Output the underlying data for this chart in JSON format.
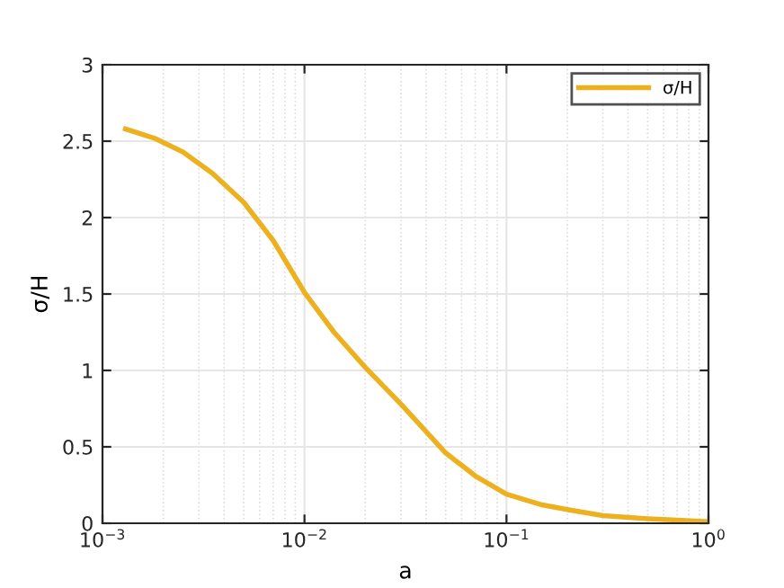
{
  "chart_data": {
    "type": "line",
    "xlabel": "a",
    "ylabel": "σ/H",
    "log": "x",
    "xlim": [
      0.001,
      1
    ],
    "ylim": [
      0,
      3
    ],
    "xticks": [
      {
        "value": 0.001,
        "label": "10$^{−3}$"
      },
      {
        "value": 0.01,
        "label": "10$^{−2}$"
      },
      {
        "value": 0.1,
        "label": "10$^{−1}$"
      },
      {
        "value": 1,
        "label": "10$^{0}$"
      }
    ],
    "yticks": [
      0,
      0.5,
      1,
      1.5,
      2,
      2.5,
      3
    ],
    "grid": true,
    "legend": "top right",
    "series": [
      {
        "name": "σ/H",
        "color": "#edb120",
        "x": [
          0.0013,
          0.0018,
          0.0025,
          0.0035,
          0.005,
          0.007,
          0.01,
          0.014,
          0.02,
          0.03,
          0.05,
          0.07,
          0.1,
          0.15,
          0.2,
          0.3,
          0.5,
          0.7,
          1
        ],
        "values": [
          2.58,
          2.52,
          2.43,
          2.29,
          2.1,
          1.85,
          1.51,
          1.25,
          1.02,
          0.78,
          0.46,
          0.31,
          0.19,
          0.12,
          0.09,
          0.05,
          0.03,
          0.02,
          0.01
        ]
      }
    ]
  }
}
